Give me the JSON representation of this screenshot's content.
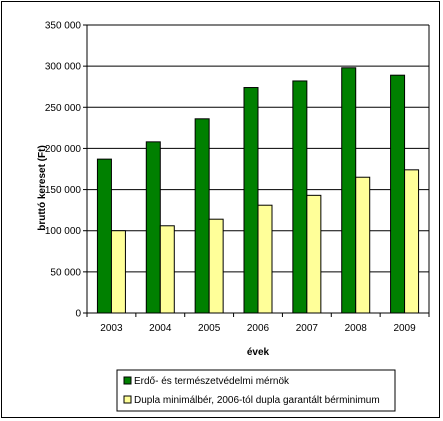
{
  "chart_data": {
    "type": "bar",
    "categories": [
      "2003",
      "2004",
      "2005",
      "2006",
      "2007",
      "2008",
      "2009"
    ],
    "series": [
      {
        "name": "Erdő- és természetvédelmi mérnök",
        "color": "#008000",
        "values": [
          187000,
          208000,
          236000,
          274000,
          282000,
          298000,
          289000
        ]
      },
      {
        "name": "Dupla minimálbér, 2006-tól dupla garantált bérminimum",
        "color": "#ffff99",
        "values": [
          100000,
          106000,
          114000,
          131000,
          143000,
          165000,
          174000
        ]
      }
    ],
    "xlabel": "évek",
    "ylabel": "bruttó kereset (Ft)",
    "ylim": [
      0,
      350000
    ],
    "yticks": [
      0,
      50000,
      100000,
      150000,
      200000,
      250000,
      300000,
      350000
    ],
    "ytick_labels": [
      "0",
      "50 000",
      "100 000",
      "150 000",
      "200 000",
      "250 000",
      "300 000",
      "350 000"
    ],
    "grid": true,
    "legend_position": "bottom"
  }
}
